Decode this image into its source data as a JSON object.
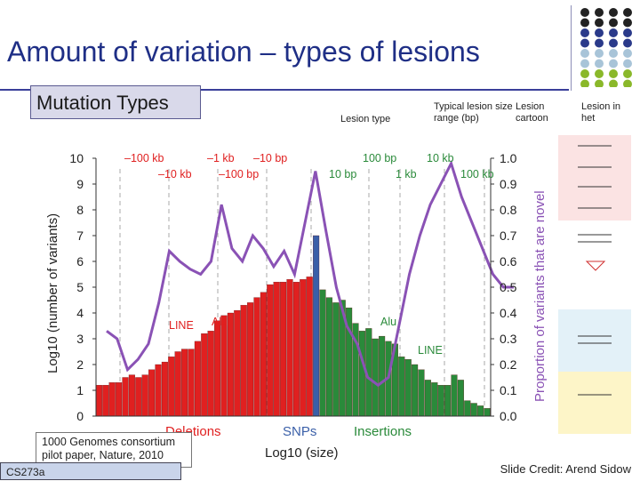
{
  "slide": {
    "title": "Amount of variation – types of lesions",
    "subtitle": "Mutation Types",
    "citation": "1000 Genomes consortium pilot paper, Nature, 2010",
    "course": "CS273a",
    "credit": "Slide Credit: Arend Sidow"
  },
  "table_header": {
    "lesion_type": "Lesion type",
    "typical_range": "Typical lesion size range (bp)",
    "cartoon": "Lesion cartoon",
    "in_het": "Lesion in het"
  },
  "colors": {
    "title": "#1f2f86",
    "deletions": "#e02020",
    "snps": "#3a5fa8",
    "insertions": "#2a8a3a",
    "novel_line": "#8a52b5",
    "pink_row": "#fbe3e3",
    "blue_row": "#e3f1f8",
    "yellow_row": "#fdf5c8"
  },
  "chart_data": {
    "type": "bar",
    "xlabel": "Log10 (size)",
    "ylabel_left": "Log10 (number of variants)",
    "ylabel_right": "Proportion of variants that are novel",
    "yleft_range": [
      0,
      10
    ],
    "yright_range": [
      0.0,
      1.0
    ],
    "yleft_ticks": [
      "0",
      "1",
      "2",
      "3",
      "4",
      "5",
      "6",
      "7",
      "8",
      "9",
      "10"
    ],
    "yright_ticks": [
      "0.0",
      "0.1",
      "0.2",
      "0.3",
      "0.4",
      "0.5",
      "0.6",
      "0.7",
      "0.8",
      "0.9",
      "1.0"
    ],
    "top_labels_deletions": [
      "–100 kb",
      "–10 kb",
      "–1 kb",
      "–100 bp",
      "–10 bp"
    ],
    "top_labels_insertions": [
      "100 bp",
      "10 bp",
      "1 kb",
      "10 kb",
      "100 kb"
    ],
    "category_labels": [
      "Deletions",
      "SNPs",
      "Insertions"
    ],
    "annotations": [
      "LINE",
      "Alu",
      "Alu",
      "LINE"
    ],
    "deletions": [
      1.2,
      1.2,
      1.3,
      1.3,
      1.5,
      1.6,
      1.5,
      1.6,
      1.8,
      2.0,
      2.1,
      2.3,
      2.5,
      2.6,
      2.6,
      2.9,
      3.2,
      3.3,
      3.7,
      3.9,
      4.0,
      4.1,
      4.3,
      4.4,
      4.6,
      4.8,
      5.1,
      5.2,
      5.2,
      5.3,
      5.2,
      5.3,
      5.4
    ],
    "snps": [
      7.0
    ],
    "insertions": [
      4.9,
      4.6,
      4.4,
      4.5,
      4.2,
      3.6,
      3.3,
      3.4,
      3.0,
      3.1,
      2.9,
      2.8,
      2.3,
      2.2,
      2.0,
      1.8,
      1.4,
      1.3,
      1.2,
      1.2,
      1.6,
      1.4,
      0.6,
      0.5,
      0.4,
      0.3
    ],
    "novel_proportion": [
      0.33,
      0.3,
      0.18,
      0.22,
      0.28,
      0.44,
      0.64,
      0.6,
      0.57,
      0.55,
      0.6,
      0.82,
      0.65,
      0.6,
      0.7,
      0.65,
      0.58,
      0.64,
      0.55,
      0.75,
      0.95,
      0.72,
      0.5,
      0.35,
      0.28,
      0.15,
      0.12,
      0.15,
      0.35,
      0.55,
      0.7,
      0.82,
      0.9,
      0.98,
      0.85,
      0.75,
      0.65,
      0.55,
      0.5,
      0.5
    ]
  }
}
